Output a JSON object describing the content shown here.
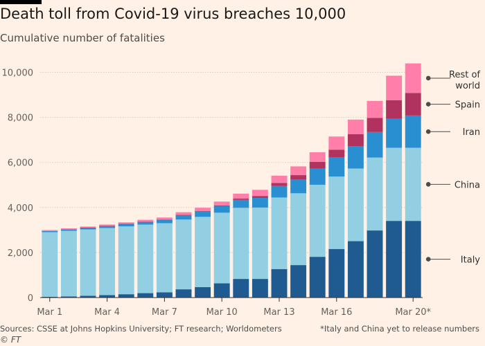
{
  "title": "Death toll from Covid-19 virus breaches 10,000",
  "subtitle": "Cumulative number of fatalities",
  "footer": {
    "sources": "Sources: CSSE at Johns Hopkins University; FT research; Worldometers",
    "note": "*Italy and China yet to release numbers",
    "credit": "© FT"
  },
  "chart_data": {
    "type": "bar",
    "stacked": true,
    "categories": [
      "Mar 1",
      "Mar 2",
      "Mar 3",
      "Mar 4",
      "Mar 5",
      "Mar 6",
      "Mar 7",
      "Mar 8",
      "Mar 9",
      "Mar 10",
      "Mar 11",
      "Mar 12",
      "Mar 13",
      "Mar 14",
      "Mar 15",
      "Mar 16",
      "Mar 17",
      "Mar 18",
      "Mar 19",
      "Mar 20*"
    ],
    "x_tick_labels": [
      "Mar 1",
      "Mar 4",
      "Mar 7",
      "Mar 10",
      "Mar 13",
      "Mar 16",
      "Mar 20*"
    ],
    "y_ticks": [
      0,
      2000,
      4000,
      6000,
      8000,
      10000
    ],
    "y_tick_labels": [
      "0",
      "2,000",
      "4,000",
      "6,000",
      "8,000",
      "10,000"
    ],
    "ylim": [
      0,
      10600
    ],
    "grid": true,
    "legend_placement": "right, labels at end of last bar",
    "series": [
      {
        "name": "Italy",
        "color": "#1f5a91",
        "values": [
          34,
          52,
          79,
          107,
          148,
          197,
          233,
          366,
          463,
          631,
          827,
          827,
          1266,
          1441,
          1809,
          2158,
          2503,
          2978,
          3405,
          3405
        ]
      },
      {
        "name": "China",
        "color": "#93cfe3",
        "values": [
          2870,
          2912,
          2945,
          2981,
          3013,
          3044,
          3070,
          3097,
          3120,
          3136,
          3158,
          3169,
          3176,
          3189,
          3199,
          3213,
          3226,
          3237,
          3245,
          3245
        ]
      },
      {
        "name": "Iran",
        "color": "#2a8fd1",
        "values": [
          54,
          66,
          77,
          92,
          107,
          124,
          145,
          194,
          237,
          291,
          354,
          429,
          514,
          611,
          724,
          853,
          988,
          1135,
          1284,
          1433
        ]
      },
      {
        "name": "Spain",
        "color": "#b0325f",
        "values": [
          0,
          0,
          1,
          2,
          3,
          5,
          10,
          17,
          28,
          35,
          55,
          86,
          133,
          195,
          289,
          342,
          533,
          623,
          830,
          1002
        ]
      },
      {
        "name": "Rest of world",
        "color": "#ff7faa",
        "values": [
          37,
          45,
          52,
          60,
          69,
          83,
          97,
          115,
          140,
          168,
          220,
          272,
          322,
          388,
          429,
          584,
          651,
          757,
          1085,
          1311
        ]
      }
    ],
    "labels": {
      "italy": "Italy",
      "china": "China",
      "iran": "Iran",
      "spain": "Spain",
      "rest_line1": "Rest of",
      "rest_line2": "world"
    }
  }
}
